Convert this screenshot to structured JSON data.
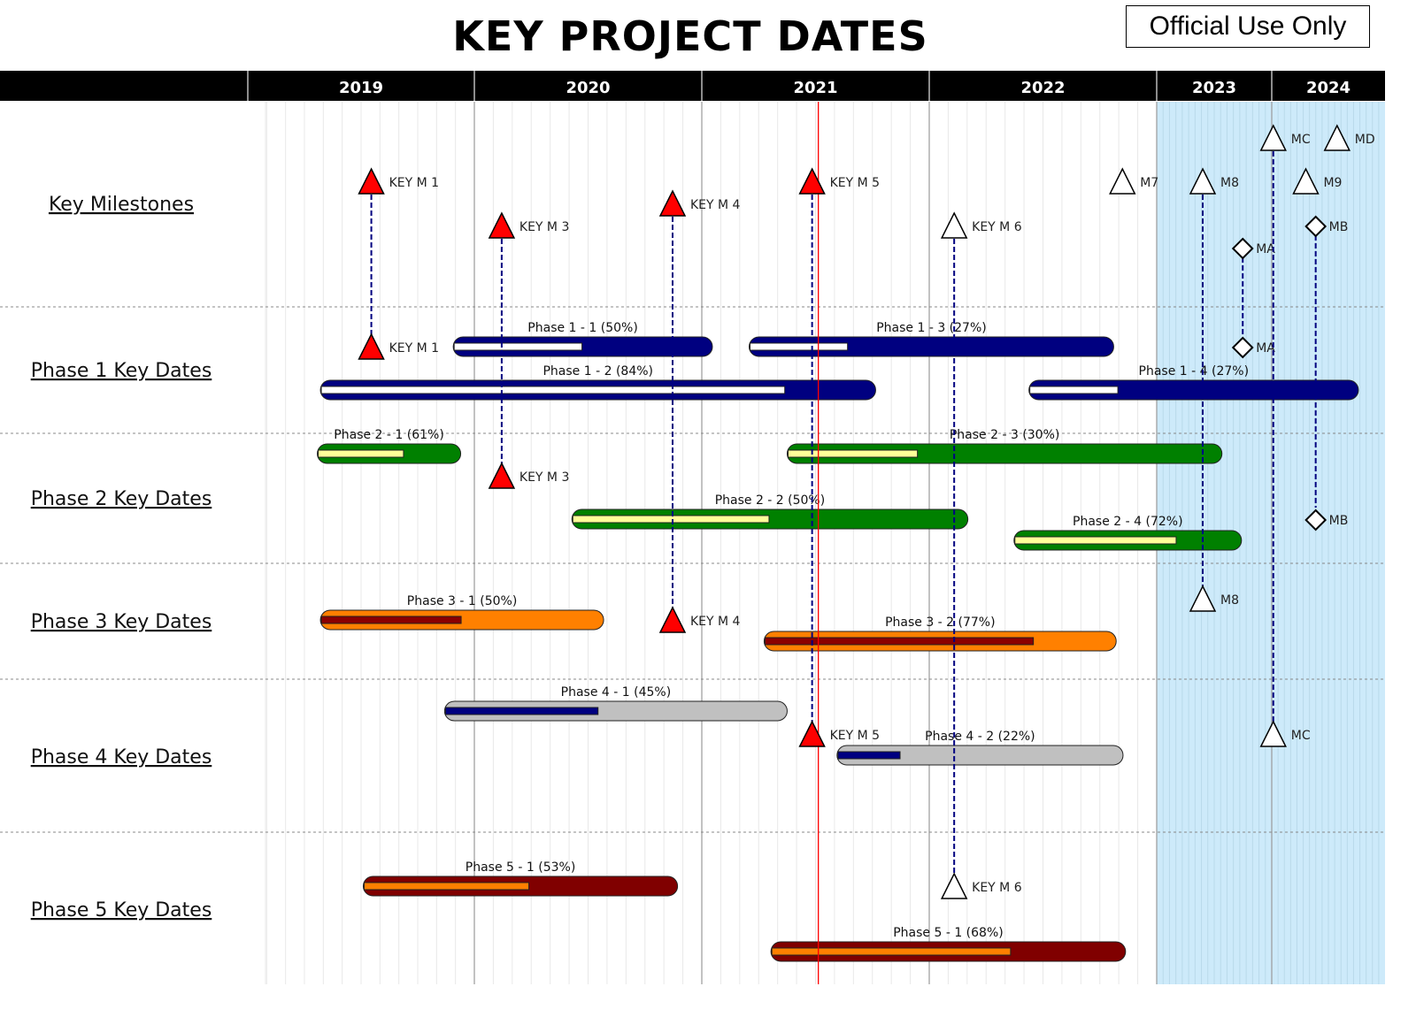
{
  "header": {
    "official_label": "Official Use Only"
  },
  "chart_data": {
    "type": "gantt",
    "title": "KEY PROJECT DATES",
    "years": [
      "2019",
      "2020",
      "2021",
      "2022",
      "2023",
      "2024"
    ],
    "today_date": "2021-07-07",
    "today_line_color": "#ff0000",
    "shaded_period_start": "2023-01-01",
    "shaded_color": "#cdeafa",
    "grid": true,
    "rows": [
      {
        "label": "Key Milestones"
      },
      {
        "label": "Phase 1 Key Dates",
        "bar_color": "#000080",
        "progress_color": "#ffffff"
      },
      {
        "label": "Phase 2 Key Dates",
        "bar_color": "#008000",
        "progress_color": "#ffff99"
      },
      {
        "label": "Phase 3 Key Dates",
        "bar_color": "#ff8000",
        "progress_color": "#8b0000"
      },
      {
        "label": "Phase 4 Key Dates",
        "bar_color": "#c0c0c0",
        "progress_color": "#000080"
      },
      {
        "label": "Phase 5 Key Dates",
        "bar_color": "#800000",
        "progress_color": "#ff8000"
      }
    ],
    "milestones": [
      {
        "label": "KEY M 1",
        "date": "2019-07-19",
        "shape": "triangle",
        "color": "#ff0000",
        "rows": [
          "Key Milestones",
          "Phase 1 Key Dates"
        ]
      },
      {
        "label": "KEY M 3",
        "date": "2020-02-14",
        "shape": "triangle",
        "color": "#ff0000",
        "rows": [
          "Key Milestones",
          "Phase 2 Key Dates"
        ]
      },
      {
        "label": "KEY M 4",
        "date": "2020-11-15",
        "shape": "triangle",
        "color": "#ff0000",
        "rows": [
          "Key Milestones",
          "Phase 3 Key Dates"
        ]
      },
      {
        "label": "KEY M 5",
        "date": "2021-06-27",
        "shape": "triangle",
        "color": "#ff0000",
        "rows": [
          "Key Milestones",
          "Phase 4 Key Dates"
        ]
      },
      {
        "label": "KEY M 6",
        "date": "2022-02-10",
        "shape": "triangle",
        "color": "#ffffff",
        "rows": [
          "Key Milestones",
          "Phase 5 Key Dates"
        ]
      },
      {
        "label": "M7",
        "date": "2022-11-07",
        "shape": "triangle",
        "color": "#ffffff",
        "rows": [
          "Key Milestones"
        ]
      },
      {
        "label": "M8",
        "date": "2023-05-27",
        "shape": "triangle",
        "color": "#ffffff",
        "rows": [
          "Key Milestones",
          "Phase 3 Key Dates"
        ]
      },
      {
        "label": "MA",
        "date": "2023-10-01",
        "shape": "diamond",
        "color": "#ffffff",
        "rows": [
          "Key Milestones",
          "Phase 1 Key Dates"
        ]
      },
      {
        "label": "MC",
        "date": "2024-01-06",
        "shape": "triangle",
        "color": "#ffffff",
        "rows": [
          "Key Milestones",
          "Phase 4 Key Dates"
        ]
      },
      {
        "label": "M9",
        "date": "2024-04-20",
        "shape": "triangle",
        "color": "#ffffff",
        "rows": [
          "Key Milestones"
        ]
      },
      {
        "label": "MB",
        "date": "2024-05-22",
        "shape": "diamond",
        "color": "#ffffff",
        "rows": [
          "Key Milestones",
          "Phase 2 Key Dates"
        ]
      },
      {
        "label": "MD",
        "date": "2024-07-30",
        "shape": "triangle",
        "color": "#ffffff",
        "rows": [
          "Key Milestones"
        ]
      }
    ],
    "tasks": [
      {
        "label": "Phase 1 - 1 (50%)",
        "row": "Phase 1 Key Dates",
        "start": "2019-11-28",
        "end": "2021-01-18",
        "progress": 50
      },
      {
        "label": "Phase 1 - 3 (27%)",
        "row": "Phase 1 Key Dates",
        "start": "2021-03-18",
        "end": "2022-10-24",
        "progress": 27
      },
      {
        "label": "Phase 1 - 2 (84%)",
        "row": "Phase 1 Key Dates",
        "start": "2019-04-28",
        "end": "2021-10-07",
        "progress": 84
      },
      {
        "label": "Phase 1 - 4 (27%)",
        "row": "Phase 1 Key Dates",
        "start": "2022-06-10",
        "end": "2024-10-07",
        "progress": 27
      },
      {
        "label": "Phase 2 - 1 (61%)",
        "row": "Phase 2 Key Dates",
        "start": "2019-04-23",
        "end": "2019-12-10",
        "progress": 61
      },
      {
        "label": "Phase 2 - 3 (30%)",
        "row": "Phase 2 Key Dates",
        "start": "2021-05-18",
        "end": "2023-07-27",
        "progress": 30
      },
      {
        "label": "Phase 2 - 2 (50%)",
        "row": "Phase 2 Key Dates",
        "start": "2020-06-06",
        "end": "2022-03-04",
        "progress": 50
      },
      {
        "label": "Phase 2 - 4 (72%)",
        "row": "Phase 2 Key Dates",
        "start": "2022-05-17",
        "end": "2023-09-27",
        "progress": 72
      },
      {
        "label": "Phase 3 - 1 (50%)",
        "row": "Phase 3 Key Dates",
        "start": "2019-04-28",
        "end": "2020-07-27",
        "progress": 50
      },
      {
        "label": "Phase 3 - 2 (77%)",
        "row": "Phase 3 Key Dates",
        "start": "2021-04-11",
        "end": "2022-10-28",
        "progress": 77
      },
      {
        "label": "Phase 4 - 1 (45%)",
        "row": "Phase 4 Key Dates",
        "start": "2019-11-14",
        "end": "2021-05-18",
        "progress": 45
      },
      {
        "label": "Phase 4 - 2 (22%)",
        "row": "Phase 4 Key Dates",
        "start": "2021-08-06",
        "end": "2022-11-08",
        "progress": 22
      },
      {
        "label": "Phase 5 - 1 (53%)",
        "row": "Phase 5 Key Dates",
        "start": "2019-07-06",
        "end": "2020-11-23",
        "progress": 53
      },
      {
        "label": "Phase 5 - 1 (68%)",
        "row": "Phase 5 Key Dates",
        "start": "2021-04-22",
        "end": "2022-11-12",
        "progress": 68
      }
    ]
  }
}
